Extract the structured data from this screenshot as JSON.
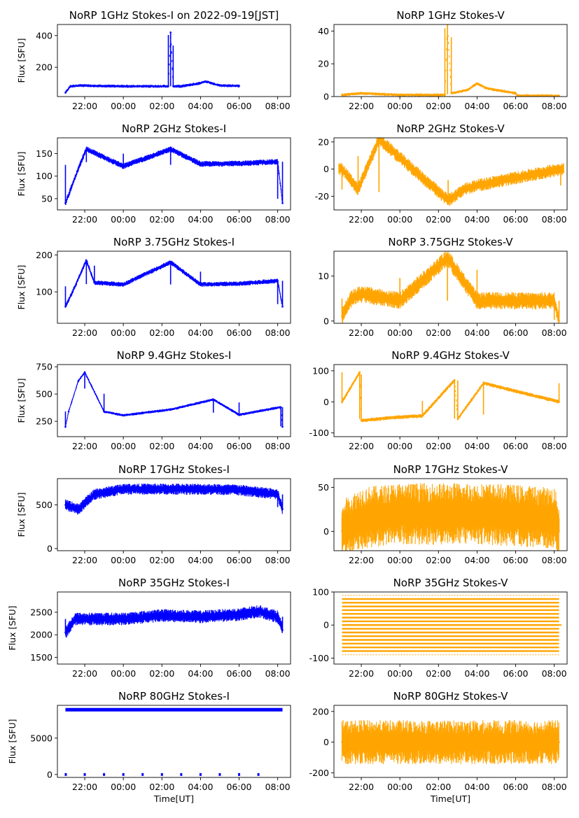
{
  "colors": {
    "stokes_i": "#0000ff",
    "stokes_v": "#ffa500"
  },
  "chart_data": [
    {
      "type": "scatter",
      "title": "NoRP 1GHz Stokes-I on 2022-09-19[JST]",
      "ylabel": "Flux [SFU]",
      "xlabel": "",
      "x_ticks": [
        "22:00",
        "00:00",
        "02:00",
        "04:00",
        "06:00",
        "08:00"
      ],
      "y_ticks": [
        "200",
        "400"
      ],
      "ylim": [
        15,
        470
      ],
      "series": [
        {
          "color": "blue",
          "x_range": [
            "21:00",
            "06:00"
          ],
          "values": [
            {
              "x": "21:00",
              "y": 40
            },
            {
              "x": "21:15",
              "y": 80
            },
            {
              "x": "21:45",
              "y": 85
            },
            {
              "x": "22:30",
              "y": 82
            },
            {
              "x": "00:00",
              "y": 80
            },
            {
              "x": "02:20",
              "y": 80
            },
            {
              "x": "02:27",
              "y": 420
            },
            {
              "x": "02:35",
              "y": 80
            },
            {
              "x": "03:00",
              "y": 80
            },
            {
              "x": "04:00",
              "y": 100
            },
            {
              "x": "04:15",
              "y": 110
            },
            {
              "x": "05:00",
              "y": 85
            },
            {
              "x": "06:00",
              "y": 82
            }
          ]
        }
      ]
    },
    {
      "type": "scatter",
      "title": "NoRP 1GHz Stokes-V",
      "ylabel": "",
      "xlabel": "",
      "x_ticks": [
        "22:00",
        "00:00",
        "02:00",
        "04:00",
        "06:00",
        "08:00"
      ],
      "y_ticks": [
        "0",
        "20",
        "40"
      ],
      "ylim": [
        0,
        44
      ],
      "series": [
        {
          "color": "orange",
          "x_range": [
            "21:00",
            "08:15"
          ],
          "values": [
            {
              "x": "21:00",
              "y": 1
            },
            {
              "x": "22:00",
              "y": 2
            },
            {
              "x": "00:00",
              "y": 1
            },
            {
              "x": "02:20",
              "y": 1
            },
            {
              "x": "02:28",
              "y": 44
            },
            {
              "x": "02:40",
              "y": 2
            },
            {
              "x": "03:30",
              "y": 4
            },
            {
              "x": "04:00",
              "y": 8
            },
            {
              "x": "04:30",
              "y": 5
            },
            {
              "x": "06:00",
              "y": 2
            },
            {
              "x": "06:05",
              "y": 0.5
            },
            {
              "x": "08:15",
              "y": 0.5
            }
          ]
        }
      ]
    },
    {
      "type": "scatter",
      "title": "NoRP 2GHz Stokes-I",
      "ylabel": "Flux [SFU]",
      "xlabel": "",
      "x_ticks": [
        "22:00",
        "00:00",
        "02:00",
        "04:00",
        "06:00",
        "08:00"
      ],
      "y_ticks": [
        "50",
        "100",
        "150"
      ],
      "ylim": [
        25,
        185
      ],
      "series": [
        {
          "color": "blue",
          "x_range": [
            "21:00",
            "08:15"
          ],
          "values": [
            {
              "x": "21:00",
              "y": 40
            },
            {
              "x": "21:45",
              "y": 125
            },
            {
              "x": "22:05",
              "y": 160
            },
            {
              "x": "22:50",
              "y": 145
            },
            {
              "x": "00:00",
              "y": 122
            },
            {
              "x": "02:27",
              "y": 160
            },
            {
              "x": "04:00",
              "y": 127
            },
            {
              "x": "06:00",
              "y": 128
            },
            {
              "x": "08:00",
              "y": 132
            },
            {
              "x": "08:15",
              "y": 40
            }
          ]
        }
      ]
    },
    {
      "type": "scatter",
      "title": "NoRP 2GHz Stokes-V",
      "ylabel": "",
      "xlabel": "",
      "x_ticks": [
        "22:00",
        "00:00",
        "02:00",
        "04:00",
        "06:00",
        "08:00"
      ],
      "y_ticks": [
        "-20",
        "0",
        "20"
      ],
      "ylim": [
        -30,
        23
      ],
      "series": [
        {
          "color": "orange",
          "x_range": [
            "20:50",
            "08:30"
          ],
          "values": [
            {
              "x": "21:00",
              "y": 0
            },
            {
              "x": "21:50",
              "y": -15
            },
            {
              "x": "22:55",
              "y": 22
            },
            {
              "x": "02:30",
              "y": -23
            },
            {
              "x": "03:20",
              "y": -15
            },
            {
              "x": "04:00",
              "y": -12
            },
            {
              "x": "08:20",
              "y": 0
            }
          ]
        }
      ]
    },
    {
      "type": "scatter",
      "title": "NoRP 3.75GHz Stokes-I",
      "ylabel": "Flux [SFU]",
      "xlabel": "",
      "x_ticks": [
        "22:00",
        "00:00",
        "02:00",
        "04:00",
        "06:00",
        "08:00"
      ],
      "y_ticks": [
        "100",
        "200"
      ],
      "ylim": [
        15,
        210
      ],
      "series": [
        {
          "color": "blue",
          "x_range": [
            "21:00",
            "08:15"
          ],
          "values": [
            {
              "x": "21:00",
              "y": 60
            },
            {
              "x": "21:30",
              "y": 115
            },
            {
              "x": "22:05",
              "y": 185
            },
            {
              "x": "22:30",
              "y": 125
            },
            {
              "x": "00:00",
              "y": 120
            },
            {
              "x": "02:27",
              "y": 180
            },
            {
              "x": "04:00",
              "y": 120
            },
            {
              "x": "06:00",
              "y": 122
            },
            {
              "x": "08:00",
              "y": 130
            },
            {
              "x": "08:15",
              "y": 60
            }
          ]
        }
      ]
    },
    {
      "type": "scatter",
      "title": "NoRP 3.75GHz Stokes-V",
      "ylabel": "",
      "xlabel": "",
      "x_ticks": [
        "22:00",
        "00:00",
        "02:00",
        "04:00",
        "06:00",
        "08:00"
      ],
      "y_ticks": [
        "0",
        "10"
      ],
      "ylim": [
        -0.5,
        15.5
      ],
      "series": [
        {
          "color": "orange",
          "x_range": [
            "21:00",
            "08:15"
          ],
          "values": [
            {
              "x": "21:00",
              "y": 1
            },
            {
              "x": "21:30",
              "y": 5
            },
            {
              "x": "22:00",
              "y": 6
            },
            {
              "x": "00:00",
              "y": 4.5
            },
            {
              "x": "02:28",
              "y": 14
            },
            {
              "x": "04:00",
              "y": 4.5
            },
            {
              "x": "08:00",
              "y": 4.5
            },
            {
              "x": "08:15",
              "y": 0
            }
          ]
        }
      ]
    },
    {
      "type": "scatter",
      "title": "NoRP 9.4GHz Stokes-I",
      "ylabel": "Flux [SFU]",
      "xlabel": "",
      "x_ticks": [
        "22:00",
        "00:00",
        "02:00",
        "04:00",
        "06:00",
        "08:00"
      ],
      "y_ticks": [
        "250",
        "500",
        "750"
      ],
      "ylim": [
        110,
        770
      ],
      "series": [
        {
          "color": "blue",
          "x_range": [
            "21:00",
            "08:15"
          ],
          "values": [
            {
              "x": "21:00",
              "y": 200
            },
            {
              "x": "21:10",
              "y": 340
            },
            {
              "x": "21:40",
              "y": 620
            },
            {
              "x": "22:00",
              "y": 700
            },
            {
              "x": "23:00",
              "y": 340
            },
            {
              "x": "00:00",
              "y": 305
            },
            {
              "x": "02:30",
              "y": 360
            },
            {
              "x": "04:40",
              "y": 450
            },
            {
              "x": "06:00",
              "y": 310
            },
            {
              "x": "08:10",
              "y": 380
            },
            {
              "x": "08:15",
              "y": 200
            }
          ]
        }
      ]
    },
    {
      "type": "scatter",
      "title": "NoRP 9.4GHz Stokes-V",
      "ylabel": "",
      "xlabel": "",
      "x_ticks": [
        "22:00",
        "00:00",
        "02:00",
        "04:00",
        "06:00",
        "08:00"
      ],
      "y_ticks": [
        "-100",
        "0",
        "100"
      ],
      "ylim": [
        -112,
        120
      ],
      "series": [
        {
          "color": "orange",
          "x_range": [
            "21:00",
            "08:15"
          ],
          "values": [
            {
              "x": "21:00",
              "y": 0
            },
            {
              "x": "21:55",
              "y": 95
            },
            {
              "x": "22:00",
              "y": -60
            },
            {
              "x": "23:50",
              "y": -50
            },
            {
              "x": "01:10",
              "y": -45
            },
            {
              "x": "02:50",
              "y": 70
            },
            {
              "x": "03:00",
              "y": -55
            },
            {
              "x": "04:20",
              "y": 60
            },
            {
              "x": "08:15",
              "y": 0
            }
          ]
        }
      ]
    },
    {
      "type": "scatter",
      "title": "NoRP 17GHz Stokes-I",
      "ylabel": "Flux [SFU]",
      "xlabel": "",
      "x_ticks": [
        "22:00",
        "00:00",
        "02:00",
        "04:00",
        "06:00",
        "08:00"
      ],
      "y_ticks": [
        "0",
        "500"
      ],
      "ylim": [
        -25,
        800
      ],
      "series": [
        {
          "color": "blue",
          "x_range": [
            "21:00",
            "08:15"
          ],
          "values": [
            {
              "x": "21:00",
              "y": 500
            },
            {
              "x": "21:40",
              "y": 450
            },
            {
              "x": "22:30",
              "y": 620
            },
            {
              "x": "00:00",
              "y": 680
            },
            {
              "x": "02:00",
              "y": 680
            },
            {
              "x": "04:00",
              "y": 680
            },
            {
              "x": "06:00",
              "y": 670
            },
            {
              "x": "08:00",
              "y": 620
            },
            {
              "x": "08:15",
              "y": 450
            }
          ]
        }
      ]
    },
    {
      "type": "scatter",
      "title": "NoRP 17GHz Stokes-V",
      "ylabel": "",
      "xlabel": "",
      "x_ticks": [
        "22:00",
        "00:00",
        "02:00",
        "04:00",
        "06:00",
        "08:00"
      ],
      "y_ticks": [
        "0",
        "50"
      ],
      "ylim": [
        -22,
        60
      ],
      "series": [
        {
          "color": "orange",
          "x_range": [
            "21:00",
            "08:15"
          ],
          "values": [
            {
              "x": "21:00",
              "y": 0
            },
            {
              "x": "22:00",
              "y": 15
            },
            {
              "x": "00:00",
              "y": 20
            },
            {
              "x": "02:00",
              "y": 20
            },
            {
              "x": "04:00",
              "y": 20
            },
            {
              "x": "06:00",
              "y": 18
            },
            {
              "x": "08:00",
              "y": 15
            },
            {
              "x": "08:15",
              "y": 0
            }
          ]
        }
      ]
    },
    {
      "type": "scatter",
      "title": "NoRP 35GHz Stokes-I",
      "ylabel": "Flux [SFU]",
      "xlabel": "",
      "x_ticks": [
        "22:00",
        "00:00",
        "02:00",
        "04:00",
        "06:00",
        "08:00"
      ],
      "y_ticks": [
        "1500",
        "2000",
        "2500"
      ],
      "ylim": [
        1350,
        2950
      ],
      "series": [
        {
          "color": "blue",
          "x_range": [
            "21:00",
            "08:15"
          ],
          "values": [
            {
              "x": "21:00",
              "y": 2050
            },
            {
              "x": "21:30",
              "y": 2350
            },
            {
              "x": "22:00",
              "y": 2350
            },
            {
              "x": "00:00",
              "y": 2350
            },
            {
              "x": "02:00",
              "y": 2430
            },
            {
              "x": "04:00",
              "y": 2400
            },
            {
              "x": "06:00",
              "y": 2450
            },
            {
              "x": "07:00",
              "y": 2520
            },
            {
              "x": "08:00",
              "y": 2400
            },
            {
              "x": "08:15",
              "y": 2100
            }
          ]
        }
      ]
    },
    {
      "type": "scatter",
      "title": "NoRP 35GHz Stokes-V",
      "ylabel": "",
      "xlabel": "",
      "x_ticks": [
        "22:00",
        "00:00",
        "02:00",
        "04:00",
        "06:00",
        "08:00"
      ],
      "y_ticks": [
        "-100",
        "0",
        "100"
      ],
      "ylim": [
        -118,
        100
      ],
      "series": [
        {
          "color": "orange",
          "x_range": [
            "21:00",
            "08:15"
          ],
          "values": [
            {
              "x": "21:00",
              "y": 0
            },
            {
              "x": "08:15",
              "y": 0
            }
          ]
        }
      ]
    },
    {
      "type": "scatter",
      "title": "NoRP 80GHz Stokes-I",
      "ylabel": "Flux [SFU]",
      "xlabel": "Time[UT]",
      "x_ticks": [
        "22:00",
        "00:00",
        "02:00",
        "04:00",
        "06:00",
        "08:00"
      ],
      "y_ticks": [
        "0",
        "5000"
      ],
      "ylim": [
        -400,
        9500
      ],
      "series": [
        {
          "color": "blue",
          "x_range": [
            "21:00",
            "08:15"
          ],
          "values": [
            {
              "x": "21:00",
              "y": 8900
            },
            {
              "x": "00:00",
              "y": 8900
            },
            {
              "x": "04:00",
              "y": 8900
            },
            {
              "x": "08:15",
              "y": 8900
            }
          ]
        }
      ]
    },
    {
      "type": "scatter",
      "title": "NoRP 80GHz Stokes-V",
      "ylabel": "",
      "xlabel": "Time[UT]",
      "x_ticks": [
        "22:00",
        "00:00",
        "02:00",
        "04:00",
        "06:00",
        "08:00"
      ],
      "y_ticks": [
        "-200",
        "0",
        "200"
      ],
      "ylim": [
        -230,
        240
      ],
      "series": [
        {
          "color": "orange",
          "x_range": [
            "21:00",
            "08:15"
          ],
          "values": [
            {
              "x": "21:00",
              "y": 0
            },
            {
              "x": "08:15",
              "y": 0
            }
          ]
        }
      ]
    }
  ]
}
